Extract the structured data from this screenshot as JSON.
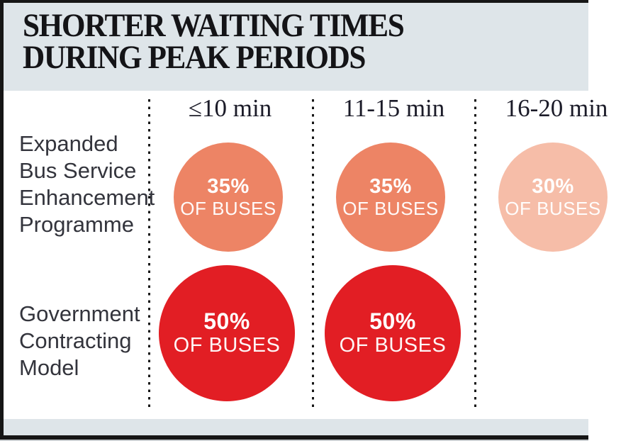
{
  "title": {
    "line1": "SHORTER WAITING TIMES",
    "line2": "DURING PEAK PERIODS"
  },
  "columns": [
    "≤10 min",
    "11-15 min",
    "16-20 min"
  ],
  "rows": [
    {
      "label": "Expanded Bus Service Enhancement Programme",
      "label_lines": [
        "Expanded",
        "Bus Service",
        "Enhancement",
        "Programme"
      ],
      "cells": [
        {
          "value": "35%",
          "caption": "OF BUSES",
          "color": "#ed8465"
        },
        {
          "value": "35%",
          "caption": "OF BUSES",
          "color": "#ed8465"
        },
        {
          "value": "30%",
          "caption": "OF BUSES",
          "color": "#f6bda8"
        }
      ]
    },
    {
      "label": "Government Contracting Model",
      "label_lines": [
        "Government",
        "Contracting",
        "Model"
      ],
      "cells": [
        {
          "value": "50%",
          "caption": "OF BUSES",
          "color": "#e21e24"
        },
        {
          "value": "50%",
          "caption": "OF BUSES",
          "color": "#e21e24"
        }
      ]
    }
  ],
  "colors": {
    "band": "#dee5e9",
    "frame": "#161616",
    "salmon": "#ed8465",
    "light_salmon": "#f6bda8",
    "red": "#e21e24",
    "title_text": "#141417",
    "label_text": "#33343c"
  },
  "chart_data": {
    "type": "table",
    "title": "SHORTER WAITING TIMES DURING PEAK PERIODS",
    "columns": [
      "≤10 min",
      "11-15 min",
      "16-20 min"
    ],
    "rows": [
      "Expanded Bus Service Enhancement Programme",
      "Government Contracting Model"
    ],
    "series": [
      {
        "name": "Expanded Bus Service Enhancement Programme",
        "values": [
          35,
          35,
          30
        ]
      },
      {
        "name": "Government Contracting Model",
        "values": [
          50,
          50,
          null
        ]
      }
    ],
    "unit": "% of buses",
    "legend_position": "none",
    "grid": "dotted vertical column separators"
  }
}
